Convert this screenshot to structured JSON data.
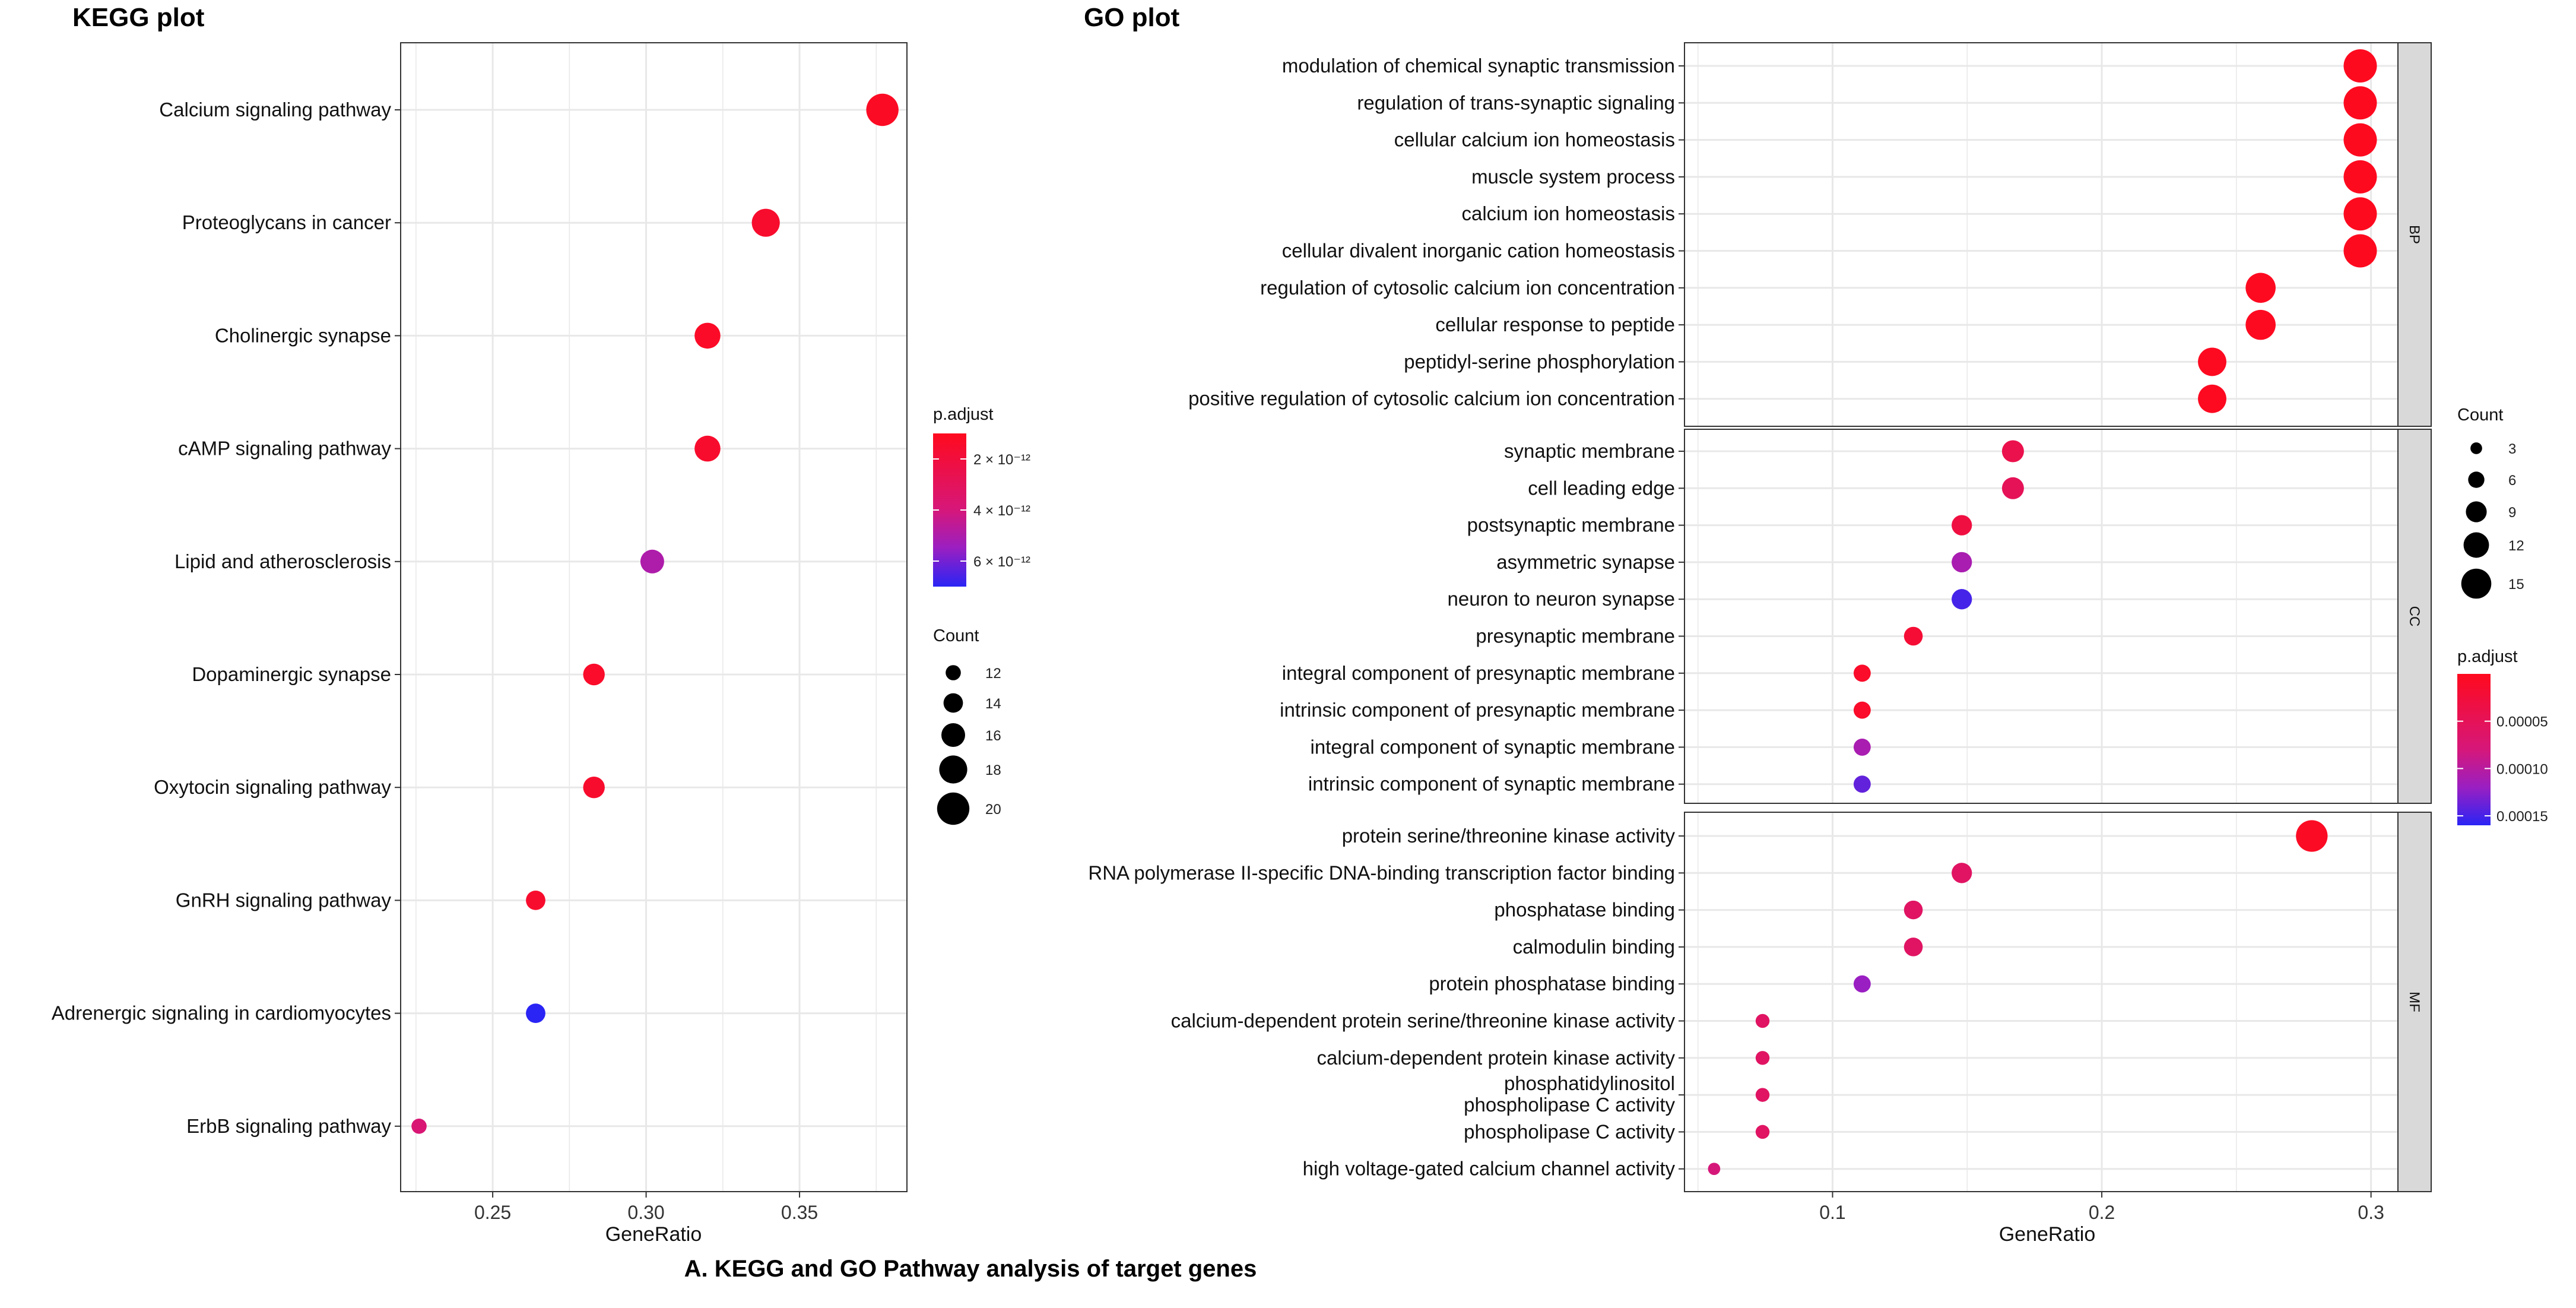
{
  "figure": {
    "caption": "A. KEGG and GO Pathway analysis of target genes"
  },
  "kegg": {
    "title": "KEGG plot",
    "xlabel": "GeneRatio",
    "x_ticks": [
      "0.25",
      "0.30",
      "0.35"
    ],
    "legend_padj_title": "p.adjust",
    "legend_padj_ticks": [
      {
        "label": "2 × 10⁻¹²",
        "value": 2e-12
      },
      {
        "label": "4 × 10⁻¹²",
        "value": 4e-12
      },
      {
        "label": "6 × 10⁻¹²",
        "value": 6e-12
      }
    ],
    "legend_count_title": "Count",
    "legend_count_ticks": [
      "12",
      "14",
      "16",
      "18",
      "20"
    ]
  },
  "go": {
    "title": "GO plot",
    "xlabel": "GeneRatio",
    "x_ticks": [
      "0.1",
      "0.2",
      "0.3"
    ],
    "legend_count_title": "Count",
    "legend_count_ticks": [
      "3",
      "6",
      "9",
      "12",
      "15"
    ],
    "legend_padj_title": "p.adjust",
    "legend_padj_ticks": [
      "0.00005",
      "0.00010",
      "0.00015"
    ]
  },
  "colors": {
    "low_padj": "#ff0a1e",
    "high_padj": "#1f1ff5",
    "grid": "#e8e8e8",
    "strip_bg": "#d9d9d9"
  },
  "chart_data": [
    {
      "type": "scatter",
      "title": "KEGG plot",
      "xlabel": "GeneRatio",
      "ylabel": "",
      "xlim": [
        0.22,
        0.385
      ],
      "color_scale": {
        "name": "p.adjust",
        "range": [
          1e-12,
          7e-12
        ]
      },
      "size_scale": {
        "name": "Count",
        "range": [
          11,
          21
        ]
      },
      "points": [
        {
          "term": "Calcium signaling pathway",
          "x": 0.377,
          "count": 20,
          "p_adjust": 1.2e-12
        },
        {
          "term": "Proteoglycans in cancer",
          "x": 0.339,
          "count": 18,
          "p_adjust": 1.5e-12
        },
        {
          "term": "Cholinergic synapse",
          "x": 0.32,
          "count": 17,
          "p_adjust": 1.3e-12
        },
        {
          "term": "cAMP signaling pathway",
          "x": 0.32,
          "count": 17,
          "p_adjust": 1.5e-12
        },
        {
          "term": "Lipid and atherosclerosis",
          "x": 0.302,
          "count": 16,
          "p_adjust": 5e-12
        },
        {
          "term": "Dopaminergic synapse",
          "x": 0.283,
          "count": 15,
          "p_adjust": 1.4e-12
        },
        {
          "term": "Oxytocin signaling pathway",
          "x": 0.283,
          "count": 15,
          "p_adjust": 1.5e-12
        },
        {
          "term": "GnRH signaling pathway",
          "x": 0.264,
          "count": 14,
          "p_adjust": 1.5e-12
        },
        {
          "term": "Adrenergic signaling in cardiomyocytes",
          "x": 0.264,
          "count": 14,
          "p_adjust": 7e-12
        },
        {
          "term": "ErbB signaling pathway",
          "x": 0.226,
          "count": 12,
          "p_adjust": 3.8e-12
        }
      ]
    },
    {
      "type": "scatter",
      "title": "GO plot",
      "xlabel": "GeneRatio",
      "ylabel": "",
      "xlim": [
        0.045,
        0.31
      ],
      "color_scale": {
        "name": "p.adjust",
        "range": [
          0.0,
          0.00016
        ]
      },
      "size_scale": {
        "name": "Count",
        "range": [
          2,
          16
        ]
      },
      "facets": [
        {
          "name": "BP",
          "points": [
            {
              "term": "modulation of chemical synaptic transmission",
              "x": 0.296,
              "count": 16,
              "p_adjust": 1e-06
            },
            {
              "term": "regulation of trans-synaptic signaling",
              "x": 0.296,
              "count": 16,
              "p_adjust": 1e-06
            },
            {
              "term": "cellular calcium ion homeostasis",
              "x": 0.296,
              "count": 16,
              "p_adjust": 1e-06
            },
            {
              "term": "muscle system process",
              "x": 0.296,
              "count": 16,
              "p_adjust": 1e-06
            },
            {
              "term": "calcium ion homeostasis",
              "x": 0.296,
              "count": 16,
              "p_adjust": 1e-06
            },
            {
              "term": "cellular divalent inorganic cation homeostasis",
              "x": 0.296,
              "count": 16,
              "p_adjust": 1e-06
            },
            {
              "term": "regulation of cytosolic calcium ion concentration",
              "x": 0.259,
              "count": 14,
              "p_adjust": 2e-06
            },
            {
              "term": "cellular response to peptide",
              "x": 0.259,
              "count": 14,
              "p_adjust": 2e-06
            },
            {
              "term": "peptidyl-serine phosphorylation",
              "x": 0.241,
              "count": 13,
              "p_adjust": 3e-06
            },
            {
              "term": "positive regulation of cytosolic calcium ion concentration",
              "x": 0.241,
              "count": 13,
              "p_adjust": 3e-06
            }
          ]
        },
        {
          "name": "CC",
          "points": [
            {
              "term": "synaptic membrane",
              "x": 0.167,
              "count": 9,
              "p_adjust": 4e-05
            },
            {
              "term": "cell leading edge",
              "x": 0.167,
              "count": 9,
              "p_adjust": 5e-05
            },
            {
              "term": "postsynaptic membrane",
              "x": 0.148,
              "count": 8,
              "p_adjust": 3e-05
            },
            {
              "term": "asymmetric synapse",
              "x": 0.148,
              "count": 8,
              "p_adjust": 0.00011
            },
            {
              "term": "neuron to neuron synapse",
              "x": 0.148,
              "count": 8,
              "p_adjust": 0.00015
            },
            {
              "term": "presynaptic membrane",
              "x": 0.13,
              "count": 7,
              "p_adjust": 2e-05
            },
            {
              "term": "integral component of presynaptic membrane",
              "x": 0.111,
              "count": 6,
              "p_adjust": 1e-05
            },
            {
              "term": "intrinsic component of presynaptic membrane",
              "x": 0.111,
              "count": 6,
              "p_adjust": 1e-05
            },
            {
              "term": "integral component of synaptic membrane",
              "x": 0.111,
              "count": 6,
              "p_adjust": 0.00011
            },
            {
              "term": "intrinsic component of synaptic membrane",
              "x": 0.111,
              "count": 6,
              "p_adjust": 0.00014
            }
          ]
        },
        {
          "name": "MF",
          "points": [
            {
              "term": "protein serine/threonine kinase activity",
              "x": 0.278,
              "count": 15,
              "p_adjust": 5e-06
            },
            {
              "term": "RNA polymerase II-specific DNA-binding transcription factor binding",
              "x": 0.148,
              "count": 8,
              "p_adjust": 6e-05
            },
            {
              "term": "phosphatase binding",
              "x": 0.13,
              "count": 7,
              "p_adjust": 6e-05
            },
            {
              "term": "calmodulin binding",
              "x": 0.13,
              "count": 7,
              "p_adjust": 6e-05
            },
            {
              "term": "protein phosphatase binding",
              "x": 0.111,
              "count": 6,
              "p_adjust": 0.00012
            },
            {
              "term": "calcium-dependent protein serine/threonine kinase activity",
              "x": 0.074,
              "count": 4,
              "p_adjust": 6e-05
            },
            {
              "term": "calcium-dependent protein kinase activity",
              "x": 0.074,
              "count": 4,
              "p_adjust": 6e-05
            },
            {
              "term": "phosphatidylinositol phospholipase C activity",
              "x": 0.074,
              "count": 4,
              "p_adjust": 6e-05,
              "label_lines": [
                "phosphatidylinositol",
                "phospholipase C activity"
              ]
            },
            {
              "term": "phospholipase C activity",
              "x": 0.074,
              "count": 4,
              "p_adjust": 6e-05
            },
            {
              "term": "high voltage-gated calcium channel activity",
              "x": 0.056,
              "count": 3,
              "p_adjust": 8e-05
            }
          ]
        }
      ]
    }
  ]
}
